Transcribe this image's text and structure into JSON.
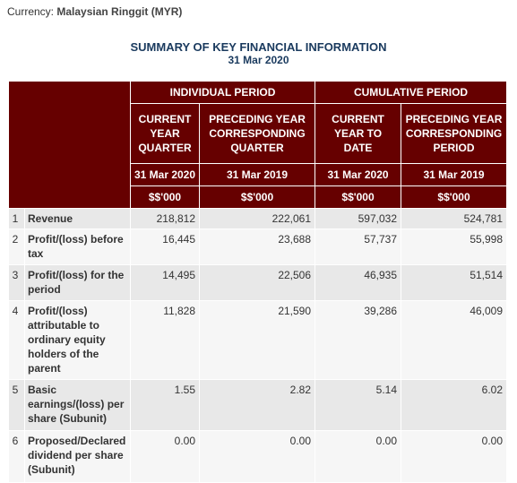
{
  "currency": {
    "label": "Currency:",
    "value": "Malaysian Ringgit (MYR)"
  },
  "title": "SUMMARY OF KEY FINANCIAL INFORMATION",
  "subtitle": "31 Mar 2020",
  "header": {
    "individual_period": "INDIVIDUAL PERIOD",
    "cumulative_period": "CUMULATIVE PERIOD",
    "col1": [
      "CURRENT",
      "YEAR",
      "QUARTER"
    ],
    "col2": [
      "PRECEDING YEAR",
      "CORRESPONDING",
      "QUARTER"
    ],
    "col3": [
      "CURRENT",
      "YEAR TO",
      "DATE"
    ],
    "col4": [
      "PRECEDING YEAR",
      "CORRESPONDING",
      "PERIOD"
    ],
    "dates": [
      "31 Mar 2020",
      "31 Mar 2019",
      "31 Mar 2020",
      "31 Mar 2019"
    ],
    "units": [
      "$$'000",
      "$$'000",
      "$$'000",
      "$$'000"
    ]
  },
  "rows": [
    {
      "num": "1",
      "label": "Revenue",
      "values": [
        "218,812",
        "222,061",
        "597,032",
        "524,781"
      ]
    },
    {
      "num": "2",
      "label": "Profit/(loss) before tax",
      "values": [
        "16,445",
        "23,688",
        "57,737",
        "55,998"
      ]
    },
    {
      "num": "3",
      "label": "Profit/(loss) for the period",
      "values": [
        "14,495",
        "22,506",
        "46,935",
        "51,514"
      ]
    },
    {
      "num": "4",
      "label": "Profit/(loss) attributable to ordinary equity holders of the parent",
      "values": [
        "11,828",
        "21,590",
        "39,286",
        "46,009"
      ]
    },
    {
      "num": "5",
      "label": "Basic earnings/(loss) per share (Subunit)",
      "values": [
        "1.55",
        "2.82",
        "5.14",
        "6.02"
      ]
    },
    {
      "num": "6",
      "label": "Proposed/Declared dividend per share (Subunit)",
      "values": [
        "0.00",
        "0.00",
        "0.00",
        "0.00"
      ]
    }
  ]
}
